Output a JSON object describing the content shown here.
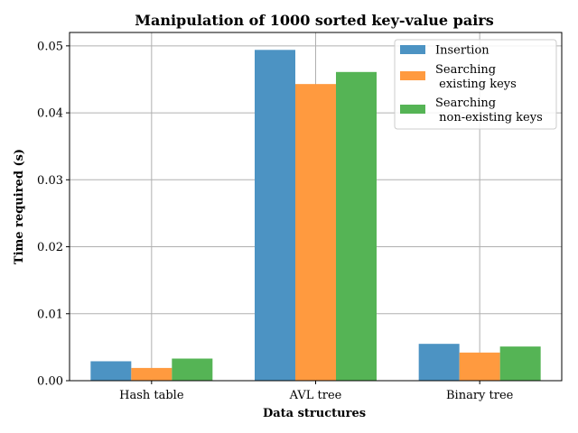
{
  "chart_data": {
    "type": "bar",
    "title": "Manipulation of 1000 sorted key-value pairs",
    "xlabel": "Data structures",
    "ylabel": "Time required (s)",
    "categories": [
      "Hash table",
      "AVL tree",
      "Binary tree"
    ],
    "series": [
      {
        "name": "Insertion",
        "legend_lines": [
          "Insertion"
        ],
        "color": "#4c93c3",
        "values": [
          0.0029,
          0.0494,
          0.0055
        ]
      },
      {
        "name": "Searching\n existing keys",
        "legend_lines": [
          "Searching",
          " existing keys"
        ],
        "color": "#ff9a3f",
        "values": [
          0.0019,
          0.0443,
          0.0042
        ]
      },
      {
        "name": "Searching\n non-existing keys",
        "legend_lines": [
          "Searching",
          " non-existing keys"
        ],
        "color": "#55b455",
        "values": [
          0.0033,
          0.0461,
          0.0051
        ]
      }
    ],
    "ylim": [
      0,
      0.052
    ],
    "yticks": [
      0.0,
      0.01,
      0.02,
      0.03,
      0.04,
      0.05
    ],
    "ytick_labels": [
      "0.00",
      "0.01",
      "0.02",
      "0.03",
      "0.04",
      "0.05"
    ],
    "grid": true,
    "legend_position": "top-right"
  }
}
